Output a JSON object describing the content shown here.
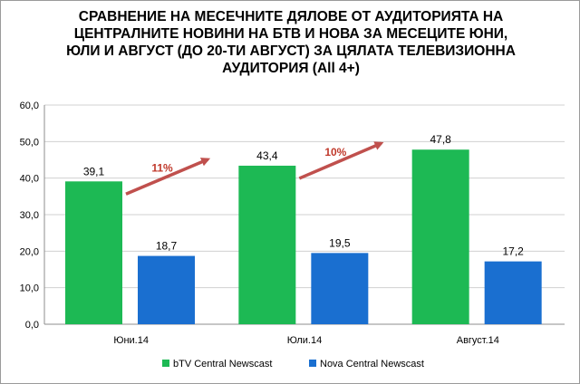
{
  "chart_data": {
    "type": "bar",
    "title": "СРАВНЕНИЕ НА МЕСЕЧНИТЕ ДЯЛОВЕ ОТ АУДИТОРИЯТА НА ЦЕНТРАЛНИТЕ НОВИНИ НА БТВ И НОВА ЗА МЕСЕЦИТЕ ЮНИ, ЮЛИ И АВГУСТ (ДО 20-ТИ АВГУСТ) ЗА ЦЯЛАТА ТЕЛЕВИЗИОННА АУДИТОРИЯ (All 4+)",
    "categories": [
      "Юни.14",
      "Юли.14",
      "Август.14"
    ],
    "series": [
      {
        "name": "bTV Central Newscast",
        "values": [
          39.1,
          43.4,
          47.8
        ],
        "labels": [
          "39,1",
          "43,4",
          "47,8"
        ],
        "color": "#1db954"
      },
      {
        "name": "Nova Central Newscast",
        "values": [
          18.7,
          19.5,
          17.2
        ],
        "labels": [
          "18,7",
          "19,5",
          "17,2"
        ],
        "color": "#1a6fd0"
      }
    ],
    "ylim": [
      0,
      60
    ],
    "yticks": [
      0,
      10,
      20,
      30,
      40,
      50,
      60
    ],
    "ytick_labels": [
      "0,0",
      "10,0",
      "20,0",
      "30,0",
      "40,0",
      "50,0",
      "60,0"
    ],
    "grid": true,
    "legend_position": "bottom",
    "annotations": [
      {
        "text": "11%",
        "from": "Юни.14",
        "to": "Юли.14",
        "color": "#c0392b"
      },
      {
        "text": "10%",
        "from": "Юли.14",
        "to": "Август.14",
        "color": "#c0392b"
      }
    ]
  }
}
